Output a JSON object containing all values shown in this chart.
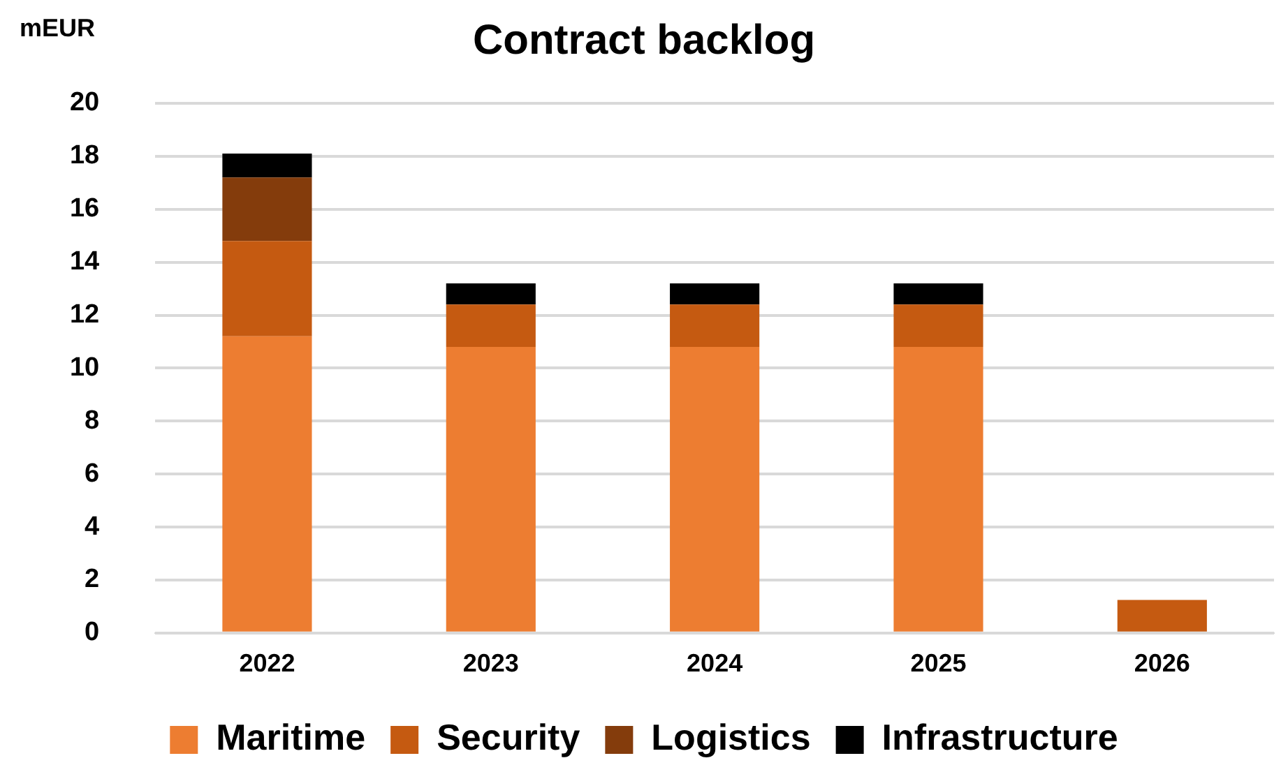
{
  "chart_data": {
    "type": "bar",
    "title": "Contract backlog",
    "ylabel": "mEUR",
    "categories": [
      "2022",
      "2023",
      "2024",
      "2025",
      "2026"
    ],
    "stacked": true,
    "ylim": [
      0,
      20
    ],
    "yticks": [
      0,
      2,
      4,
      6,
      8,
      10,
      12,
      14,
      16,
      18,
      20
    ],
    "grid": "y",
    "legend": "bottom",
    "series": [
      {
        "name": "Maritime",
        "color": "#ed7d31",
        "values": [
          11.2,
          10.8,
          10.8,
          10.8,
          null
        ]
      },
      {
        "name": "Security",
        "color": "#c55a11",
        "values": [
          3.6,
          1.6,
          1.6,
          1.6,
          1.25
        ]
      },
      {
        "name": "Logistics",
        "color": "#843c0c",
        "values": [
          2.4,
          null,
          null,
          null,
          null
        ]
      },
      {
        "name": "Infrastructure",
        "color": "#000000",
        "values": [
          0.9,
          0.8,
          0.8,
          0.8,
          null
        ]
      }
    ]
  }
}
